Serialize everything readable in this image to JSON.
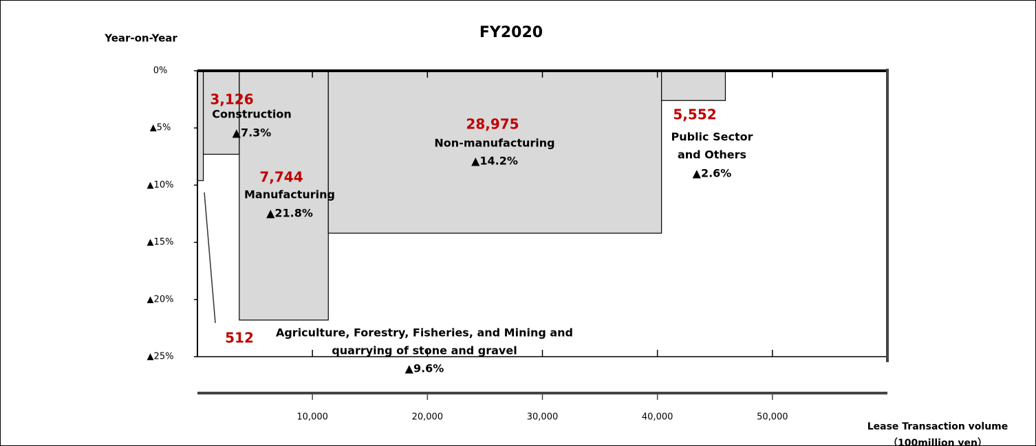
{
  "chart_data": {
    "type": "mekko",
    "title": "FY2020",
    "ylabel": "Year-on-Year",
    "xlabel": [
      "Lease Transaction volume",
      "（100million yen）"
    ],
    "categories": [
      [
        "Agriculture, Forestry, Fisheries, and Mining and",
        "quarrying of stone and gravel"
      ],
      [
        "Construction"
      ],
      [
        "Manufacturing"
      ],
      [
        "Non-manufacturing"
      ],
      [
        "Public Sector",
        "and Others"
      ]
    ],
    "widths": [
      512,
      3126,
      7744,
      28975,
      5552
    ],
    "width_labels": [
      "512",
      "3,126",
      "7,744",
      "28,975",
      "5,552"
    ],
    "values": [
      -9.6,
      -7.3,
      -21.8,
      -14.2,
      -2.6
    ],
    "value_labels": [
      "▲9.6%",
      "▲7.3%",
      "▲21.8%",
      "▲14.2%",
      "▲2.6%"
    ],
    "color": "#d9d9d9",
    "label_color": "#c00000",
    "xlim": [
      0,
      60000
    ],
    "xticks": [
      {
        "value": 10000,
        "label": "10,000"
      },
      {
        "value": 20000,
        "label": "20,000"
      },
      {
        "value": 30000,
        "label": "30,000"
      },
      {
        "value": 40000,
        "label": "40,000"
      },
      {
        "value": 50000,
        "label": "50,000"
      }
    ],
    "ylim": [
      -25,
      0
    ],
    "yticks": [
      {
        "value": 0,
        "label": "0%"
      },
      {
        "value": -5,
        "label": "▲5%"
      },
      {
        "value": -10,
        "label": "▲10%"
      },
      {
        "value": -15,
        "label": "▲15%"
      },
      {
        "value": -20,
        "label": "▲20%"
      },
      {
        "value": -25,
        "label": "▲25%"
      }
    ]
  }
}
